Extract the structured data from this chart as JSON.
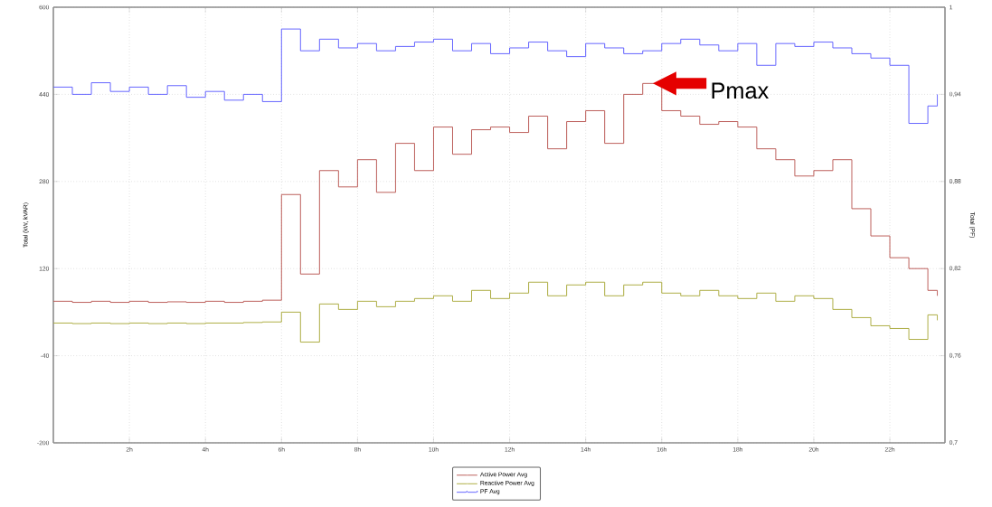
{
  "chart_data": {
    "type": "step",
    "ylabel": "Total (kW, kVAR)",
    "y2label": "Total (PF)",
    "x": [
      0,
      0.5,
      1,
      1.5,
      2,
      2.5,
      3,
      3.5,
      4,
      4.5,
      5,
      5.5,
      6,
      6.5,
      7,
      7.5,
      8,
      8.5,
      9,
      9.5,
      10,
      10.5,
      11,
      11.5,
      12,
      12.5,
      13,
      13.5,
      14,
      14.5,
      15,
      15.5,
      16,
      16.5,
      17,
      17.5,
      18,
      18.5,
      19,
      19.5,
      20,
      20.5,
      21,
      21.5,
      22,
      22.5,
      23,
      23.25
    ],
    "series": [
      {
        "name": "Active Power Avg",
        "color": "#b85450",
        "values": [
          60,
          58,
          60,
          58,
          60,
          58,
          59,
          58,
          60,
          58,
          60,
          62,
          256,
          110,
          300,
          270,
          320,
          260,
          350,
          300,
          380,
          330,
          375,
          380,
          370,
          400,
          340,
          390,
          410,
          350,
          440,
          460,
          410,
          400,
          385,
          390,
          380,
          340,
          320,
          290,
          300,
          320,
          230,
          180,
          140,
          120,
          80,
          70
        ]
      },
      {
        "name": "Reactive Power Avg",
        "color": "#a8a838",
        "values": [
          20,
          19,
          20,
          19,
          20,
          19,
          20,
          19,
          20,
          20,
          21,
          22,
          40,
          -15,
          55,
          45,
          60,
          50,
          60,
          65,
          70,
          60,
          80,
          65,
          75,
          95,
          70,
          90,
          95,
          70,
          90,
          95,
          75,
          70,
          80,
          70,
          65,
          75,
          60,
          70,
          65,
          45,
          30,
          15,
          10,
          -10,
          35,
          25
        ]
      },
      {
        "name": "PF Avg",
        "color": "#5a5aff",
        "axis": "y2",
        "values": [
          0.945,
          0.94,
          0.948,
          0.942,
          0.945,
          0.94,
          0.946,
          0.938,
          0.942,
          0.936,
          0.94,
          0.935,
          0.985,
          0.97,
          0.978,
          0.972,
          0.975,
          0.97,
          0.973,
          0.976,
          0.978,
          0.97,
          0.975,
          0.968,
          0.972,
          0.976,
          0.97,
          0.966,
          0.975,
          0.972,
          0.968,
          0.97,
          0.975,
          0.978,
          0.974,
          0.97,
          0.975,
          0.96,
          0.975,
          0.973,
          0.976,
          0.972,
          0.968,
          0.965,
          0.96,
          0.92,
          0.932,
          0.94
        ]
      }
    ],
    "xlim": [
      0,
      23.45
    ],
    "xticks": [
      {
        "value": 2,
        "label": "2h"
      },
      {
        "value": 4,
        "label": "4h"
      },
      {
        "value": 6,
        "label": "6h"
      },
      {
        "value": 8,
        "label": "8h"
      },
      {
        "value": 10,
        "label": "10h"
      },
      {
        "value": 12,
        "label": "12h"
      },
      {
        "value": 14,
        "label": "14h"
      },
      {
        "value": 16,
        "label": "16h"
      },
      {
        "value": 18,
        "label": "18h"
      },
      {
        "value": 20,
        "label": "20h"
      },
      {
        "value": 22,
        "label": "22h"
      }
    ],
    "ylim": [
      -200,
      600
    ],
    "yticks": [
      -200,
      -40,
      120,
      280,
      440,
      600
    ],
    "y2lim": [
      0.7,
      1
    ],
    "y2ticks": [
      {
        "value": 0.7,
        "label": "0,7"
      },
      {
        "value": 0.76,
        "label": "0,76"
      },
      {
        "value": 0.82,
        "label": "0,82"
      },
      {
        "value": 0.88,
        "label": "0,88"
      },
      {
        "value": 0.94,
        "label": "0,94"
      },
      {
        "value": 1,
        "label": "1"
      }
    ],
    "grid": true,
    "legend": "bottom",
    "marker": "none",
    "annotations": [
      {
        "text": "Pmax",
        "x": 15.75,
        "y": 460
      }
    ]
  }
}
